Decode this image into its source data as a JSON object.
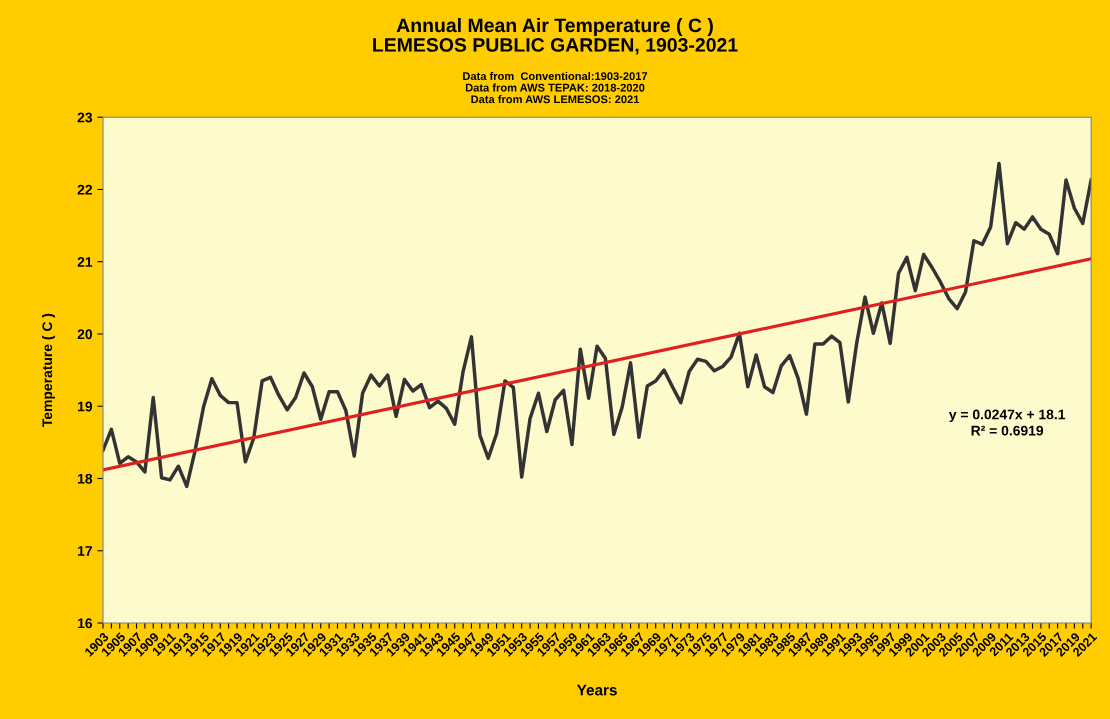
{
  "chart_data": {
    "type": "line",
    "title": "Annual Mean Air Temperature ( C )\nLEMESOS PUBLIC GARDEN, 1903-2021",
    "subtitle": "Data from  Conventional:1903-2017\nData from AWS TEPAK: 2018-2020\nData from AWS LEMESOS: 2021",
    "xlabel": "Years",
    "ylabel": "Temperature ( C )",
    "annotations": [
      "y = 0.0247x + 18.1",
      "R² = 0.6919"
    ],
    "x": [
      1903,
      1904,
      1905,
      1906,
      1907,
      1908,
      1909,
      1910,
      1911,
      1912,
      1913,
      1914,
      1915,
      1916,
      1917,
      1918,
      1919,
      1920,
      1921,
      1922,
      1923,
      1924,
      1925,
      1926,
      1927,
      1928,
      1929,
      1930,
      1931,
      1932,
      1933,
      1934,
      1935,
      1936,
      1937,
      1938,
      1939,
      1940,
      1941,
      1942,
      1943,
      1944,
      1945,
      1946,
      1947,
      1948,
      1949,
      1950,
      1951,
      1952,
      1953,
      1954,
      1955,
      1956,
      1957,
      1958,
      1959,
      1960,
      1961,
      1962,
      1963,
      1964,
      1965,
      1966,
      1967,
      1968,
      1969,
      1970,
      1971,
      1972,
      1973,
      1974,
      1975,
      1976,
      1977,
      1978,
      1979,
      1980,
      1981,
      1982,
      1983,
      1984,
      1985,
      1986,
      1987,
      1988,
      1989,
      1990,
      1991,
      1992,
      1993,
      1994,
      1995,
      1996,
      1997,
      1998,
      1999,
      2000,
      2001,
      2002,
      2003,
      2004,
      2005,
      2006,
      2007,
      2008,
      2009,
      2010,
      2011,
      2012,
      2013,
      2014,
      2015,
      2016,
      2017,
      2018,
      2019,
      2020,
      2021
    ],
    "series": [
      {
        "color": "#333333",
        "values": [
          18.39,
          18.68,
          18.21,
          18.3,
          18.23,
          18.09,
          19.12,
          18.01,
          17.98,
          18.17,
          17.89,
          18.39,
          18.99,
          19.38,
          19.15,
          19.05,
          19.05,
          18.23,
          18.56,
          19.35,
          19.4,
          19.15,
          18.95,
          19.12,
          19.46,
          19.27,
          18.82,
          19.2,
          19.2,
          18.94,
          18.31,
          19.18,
          19.43,
          19.28,
          19.43,
          18.86,
          19.37,
          19.21,
          19.3,
          18.98,
          19.07,
          18.97,
          18.75,
          19.48,
          19.96,
          18.6,
          18.28,
          18.62,
          19.35,
          19.26,
          18.02,
          18.83,
          19.18,
          18.65,
          19.09,
          19.22,
          18.47,
          19.79,
          19.11,
          19.83,
          19.66,
          18.61,
          18.99,
          19.6,
          18.57,
          19.28,
          19.35,
          19.5,
          19.27,
          19.05,
          19.48,
          19.65,
          19.62,
          19.49,
          19.55,
          19.68,
          20.01,
          19.27,
          19.71,
          19.27,
          19.19,
          19.56,
          19.7,
          19.39,
          18.89,
          19.86,
          19.86,
          19.97,
          19.88,
          19.06,
          19.87,
          20.51,
          20.01,
          20.43,
          19.87,
          20.84,
          21.06,
          20.6,
          21.1,
          20.92,
          20.72,
          20.49,
          20.35,
          20.58,
          21.29,
          21.24,
          21.48,
          22.36,
          21.25,
          21.54,
          21.45,
          21.62,
          21.45,
          21.38,
          21.11,
          22.13,
          21.74,
          21.53,
          22.13
        ]
      },
      {
        "type": "line",
        "color": "#e02020",
        "x": [
          1903,
          2021
        ],
        "values": [
          18.12,
          21.04
        ]
      }
    ],
    "xlim": [
      1903,
      2021
    ],
    "xticks": [
      1903,
      {
        "value": 1904,
        "label": null
      },
      1905,
      {
        "value": 1906,
        "label": null
      },
      1907,
      {
        "value": 1908,
        "label": null
      },
      1909,
      {
        "value": 1910,
        "label": null
      },
      1911,
      {
        "value": 1912,
        "label": null
      },
      1913,
      {
        "value": 1914,
        "label": null
      },
      1915,
      {
        "value": 1916,
        "label": null
      },
      1917,
      {
        "value": 1918,
        "label": null
      },
      1919,
      {
        "value": 1920,
        "label": null
      },
      1921,
      {
        "value": 1922,
        "label": null
      },
      1923,
      {
        "value": 1924,
        "label": null
      },
      1925,
      {
        "value": 1926,
        "label": null
      },
      1927,
      {
        "value": 1928,
        "label": null
      },
      1929,
      {
        "value": 1930,
        "label": null
      },
      1931,
      {
        "value": 1932,
        "label": null
      },
      1933,
      {
        "value": 1934,
        "label": null
      },
      1935,
      {
        "value": 1936,
        "label": null
      },
      1937,
      {
        "value": 1938,
        "label": null
      },
      1939,
      {
        "value": 1940,
        "label": null
      },
      1941,
      {
        "value": 1942,
        "label": null
      },
      1943,
      {
        "value": 1944,
        "label": null
      },
      1945,
      {
        "value": 1946,
        "label": null
      },
      1947,
      {
        "value": 1948,
        "label": null
      },
      1949,
      {
        "value": 1950,
        "label": null
      },
      1951,
      {
        "value": 1952,
        "label": null
      },
      1953,
      {
        "value": 1954,
        "label": null
      },
      1955,
      {
        "value": 1956,
        "label": null
      },
      1957,
      {
        "value": 1958,
        "label": null
      },
      1959,
      {
        "value": 1960,
        "label": null
      },
      1961,
      {
        "value": 1962,
        "label": null
      },
      1963,
      {
        "value": 1964,
        "label": null
      },
      1965,
      {
        "value": 1966,
        "label": null
      },
      1967,
      {
        "value": 1968,
        "label": null
      },
      1969,
      {
        "value": 1970,
        "label": null
      },
      1971,
      {
        "value": 1972,
        "label": null
      },
      1973,
      {
        "value": 1974,
        "label": null
      },
      1975,
      {
        "value": 1976,
        "label": null
      },
      1977,
      {
        "value": 1978,
        "label": null
      },
      1979,
      {
        "value": 1980,
        "label": null
      },
      1981,
      {
        "value": 1982,
        "label": null
      },
      1983,
      {
        "value": 1984,
        "label": null
      },
      1985,
      {
        "value": 1986,
        "label": null
      },
      1987,
      {
        "value": 1988,
        "label": null
      },
      1989,
      {
        "value": 1990,
        "label": null
      },
      1991,
      {
        "value": 1992,
        "label": null
      },
      1993,
      {
        "value": 1994,
        "label": null
      },
      1995,
      {
        "value": 1996,
        "label": null
      },
      1997,
      {
        "value": 1998,
        "label": null
      },
      1999,
      {
        "value": 2000,
        "label": null
      },
      2001,
      {
        "value": 2002,
        "label": null
      },
      2003,
      {
        "value": 2004,
        "label": null
      },
      2005,
      {
        "value": 2006,
        "label": null
      },
      2007,
      {
        "value": 2008,
        "label": null
      },
      2009,
      {
        "value": 2010,
        "label": null
      },
      2011,
      {
        "value": 2012,
        "label": null
      },
      2013,
      {
        "value": 2014,
        "label": null
      },
      2015,
      {
        "value": 2016,
        "label": null
      },
      2017,
      {
        "value": 2018,
        "label": null
      },
      2019,
      {
        "value": 2020,
        "label": null
      },
      2021
    ],
    "ylim": [
      16,
      23
    ],
    "yticks": [
      16,
      17,
      18,
      19,
      20,
      21,
      22,
      23
    ],
    "grid": false,
    "legend": false,
    "marker": "none",
    "line_style": "solid"
  }
}
